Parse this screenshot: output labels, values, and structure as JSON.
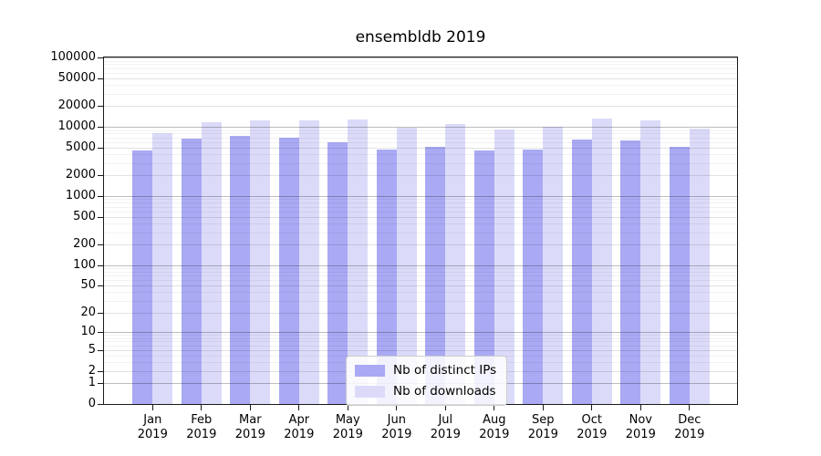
{
  "title": "ensembldb 2019",
  "chart_data": {
    "type": "bar",
    "title": "ensembldb 2019",
    "yscale": "log10(value + 1)",
    "ylim": [
      0,
      100000
    ],
    "grid": true,
    "legend_position": "lower center",
    "year": "2019",
    "categories": [
      "Jan",
      "Feb",
      "Mar",
      "Apr",
      "May",
      "Jun",
      "Jul",
      "Aug",
      "Sep",
      "Oct",
      "Nov",
      "Dec"
    ],
    "yticks": [
      100000,
      50000,
      20000,
      10000,
      5000,
      2000,
      1000,
      500,
      200,
      100,
      50,
      20,
      10,
      5,
      2,
      1,
      0
    ],
    "series": [
      {
        "name": "Nb of distinct IPs",
        "color": "#a9a9f4",
        "values": [
          4600,
          6700,
          7400,
          7050,
          6000,
          4700,
          5100,
          4500,
          4700,
          6550,
          6400,
          5100
        ]
      },
      {
        "name": "Nb of downloads",
        "color": "#dbdbf9",
        "values": [
          8200,
          11500,
          12200,
          12400,
          12900,
          9700,
          10900,
          9100,
          10000,
          13200,
          12200,
          9500
        ]
      }
    ],
    "colors": {
      "spine": "#1a1a1a",
      "text": "#000000",
      "background": "#ffffff"
    }
  }
}
